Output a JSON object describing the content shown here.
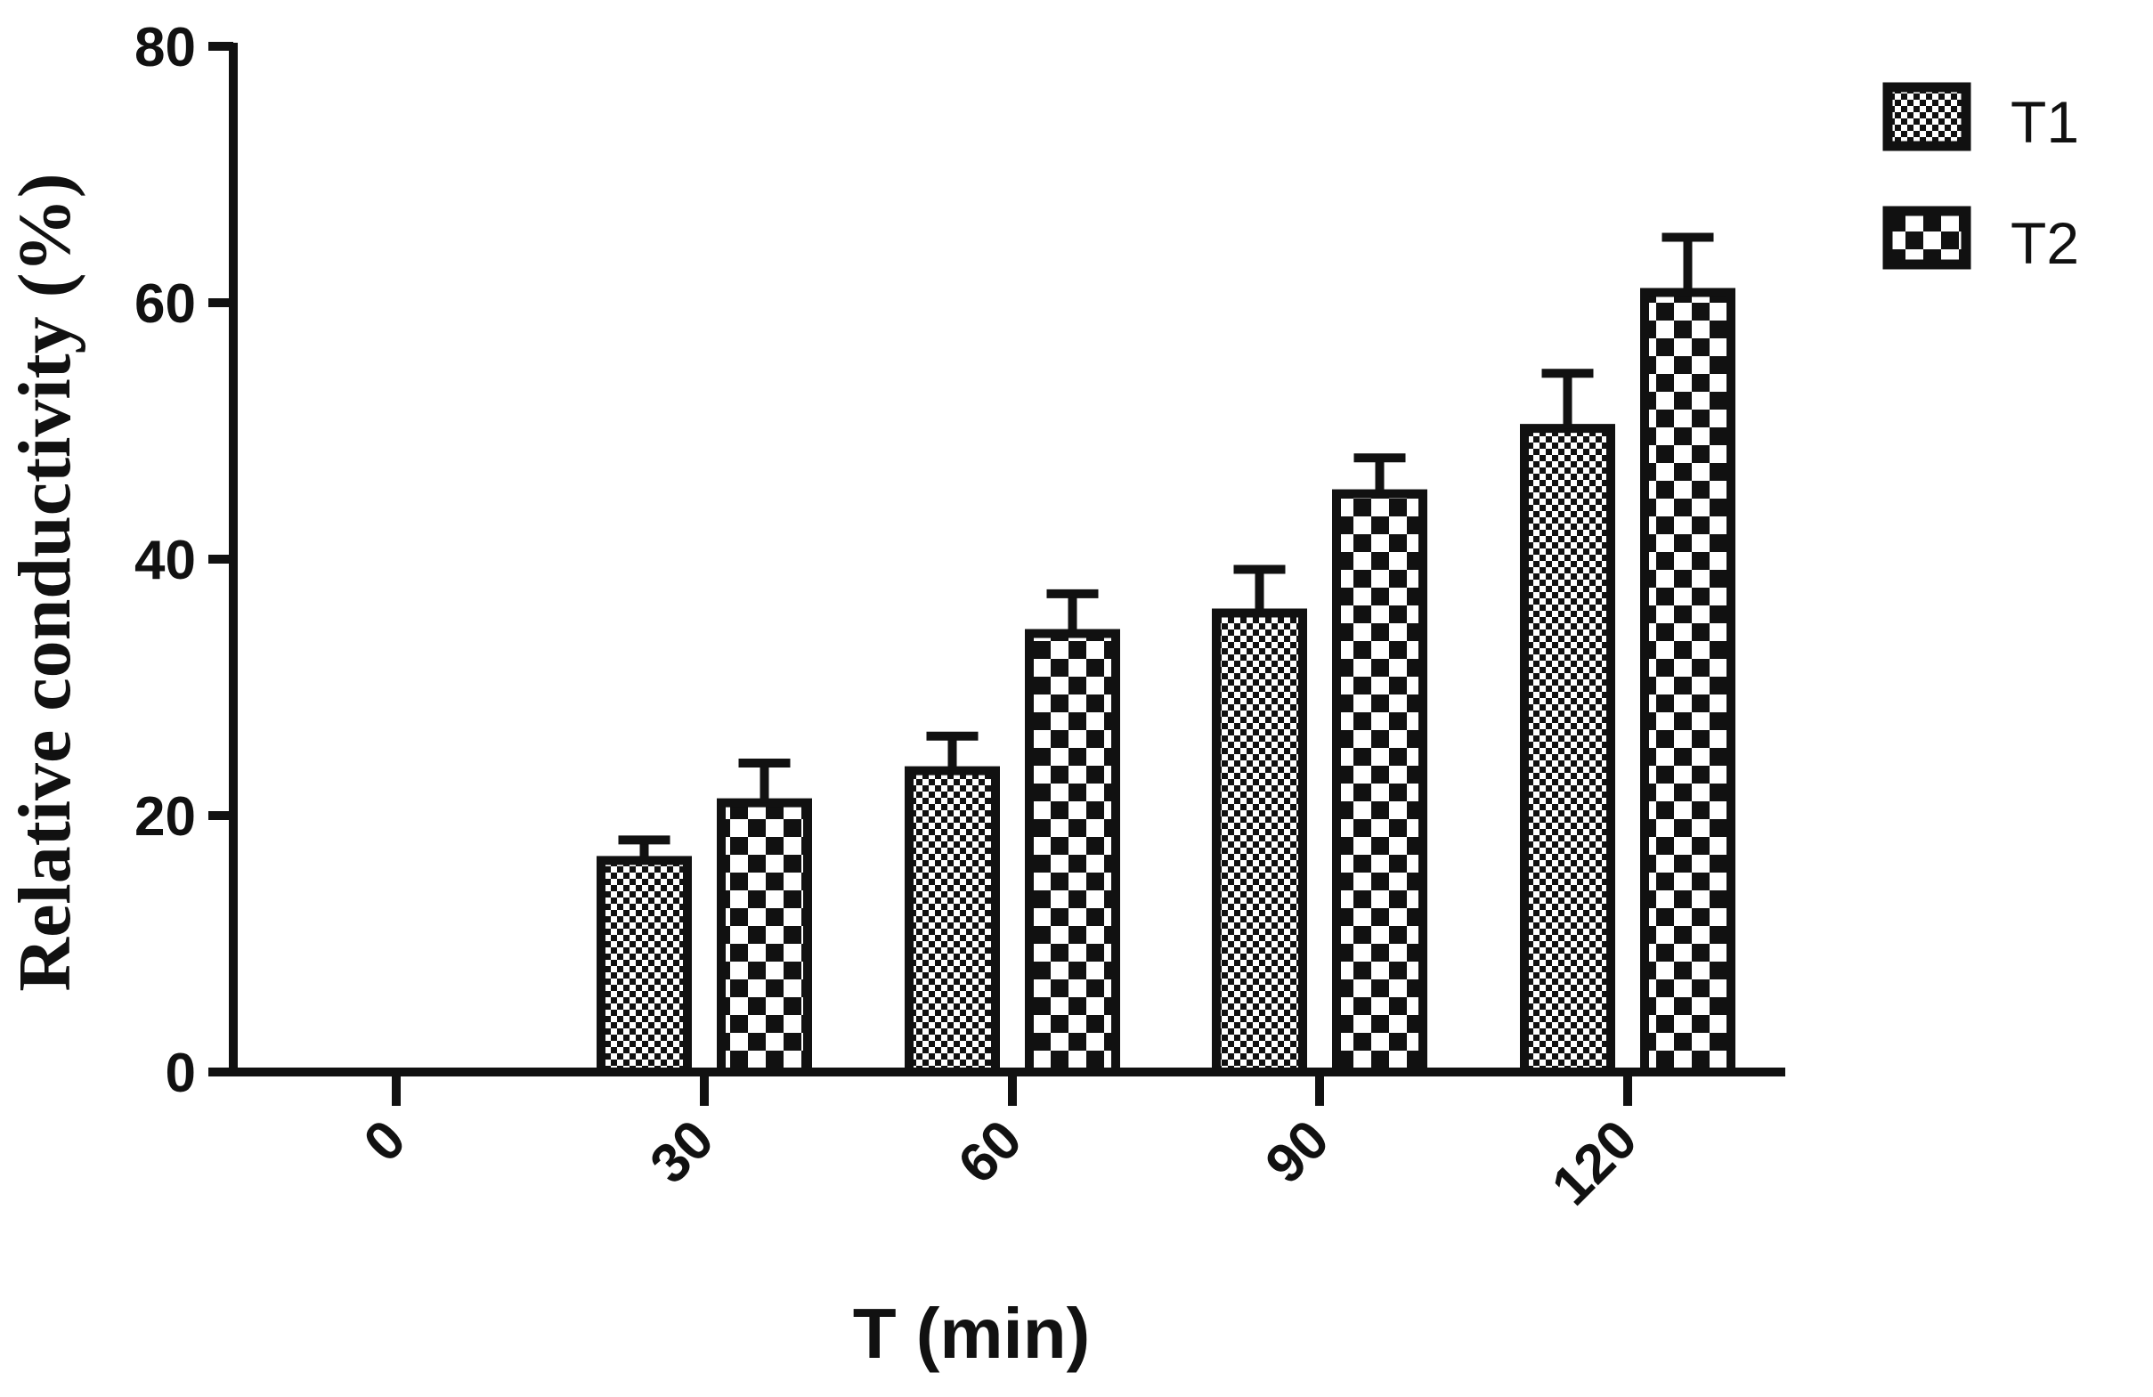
{
  "chart_data": {
    "type": "bar",
    "title": "",
    "xlabel": "T (min)",
    "ylabel": "Relative conductivity (%)",
    "categories": [
      "0",
      "30",
      "60",
      "90",
      "120"
    ],
    "yticks": [
      "0",
      "20",
      "40",
      "60",
      "80"
    ],
    "ylim": [
      0,
      80
    ],
    "grid": false,
    "legend_position": "top-right",
    "series": [
      {
        "name": "T1",
        "pattern": "fine-checker",
        "values": [
          0,
          16.5,
          23.5,
          35.8,
          50.2
        ],
        "errors": [
          0,
          1.6,
          2.7,
          3.4,
          4.3
        ]
      },
      {
        "name": "T2",
        "pattern": "coarse-checker",
        "values": [
          0,
          21,
          34.2,
          45.1,
          60.8
        ],
        "errors": [
          0,
          3.1,
          3.1,
          2.8,
          4.3
        ]
      }
    ],
    "colors": {
      "bar_edge": "#111111",
      "pattern_dark": "#111111",
      "pattern_light": "#ffffff"
    }
  }
}
